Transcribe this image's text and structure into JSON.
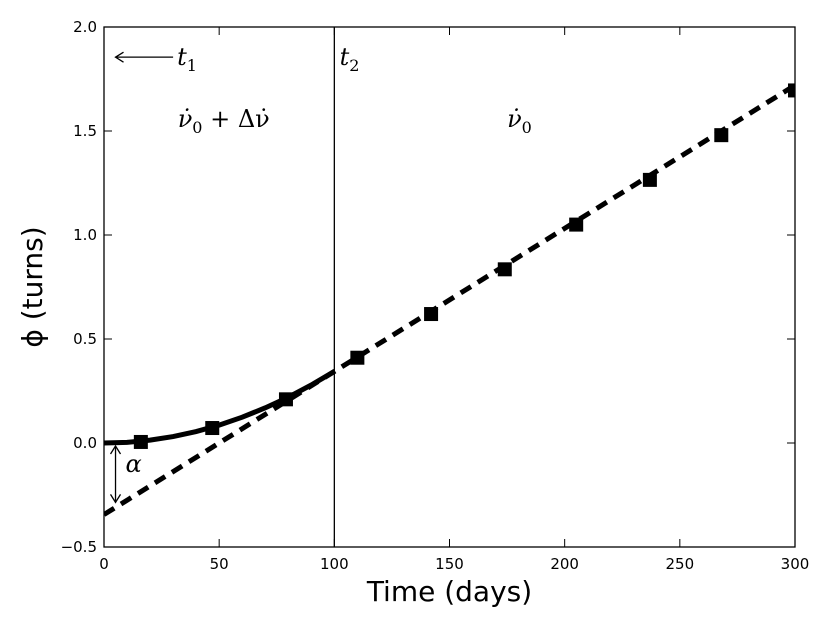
{
  "chart_data": {
    "type": "line",
    "title": "",
    "xlabel": "Time (days)",
    "ylabel": "ϕ (turns)",
    "xlim": [
      0,
      300
    ],
    "ylim": [
      -0.5,
      2.0
    ],
    "xticks": [
      0,
      50,
      100,
      150,
      200,
      250,
      300
    ],
    "yticks": [
      -0.5,
      0.0,
      0.5,
      1.0,
      1.5,
      2.0
    ],
    "xtick_labels": [
      "0",
      "50",
      "100",
      "150",
      "200",
      "250",
      "300"
    ],
    "ytick_labels": [
      "−0.5",
      "0.0",
      "0.5",
      "1.0",
      "1.5",
      "2.0"
    ],
    "grid": false,
    "series": [
      {
        "style": "solid",
        "color": "#000000",
        "x": [
          0,
          10,
          20,
          30,
          40,
          50,
          60,
          70,
          80,
          90,
          100
        ],
        "y": [
          0.0,
          0.003,
          0.014,
          0.031,
          0.055,
          0.086,
          0.124,
          0.169,
          0.22,
          0.279,
          0.344
        ]
      },
      {
        "style": "dashed",
        "color": "#000000",
        "x": [
          0,
          300
        ],
        "y": [
          -0.344,
          1.72
        ]
      },
      {
        "style": "markers",
        "marker": "square",
        "color": "#000000",
        "x": [
          16,
          47,
          79,
          110,
          142,
          174,
          205,
          237,
          268,
          300
        ],
        "y": [
          0.005,
          0.072,
          0.21,
          0.41,
          0.62,
          0.835,
          1.05,
          1.265,
          1.48,
          1.695
        ]
      }
    ],
    "vline": {
      "x": 100
    },
    "annotations": {
      "t1": {
        "base": "t",
        "sub": "1",
        "arrow_from_x": 30,
        "arrow_to_x": 5,
        "y": 1.855
      },
      "t2": {
        "base": "t",
        "sub": "2",
        "x": 101,
        "y": 1.855
      },
      "region_left": {
        "text": "ν̇",
        "sub": "0",
        "rest": " + Δν̇",
        "x": 32,
        "y": 1.52
      },
      "region_right": {
        "text": "ν̇",
        "sub": "0",
        "x": 175,
        "y": 1.52
      },
      "alpha": {
        "text": "α",
        "x": 5,
        "y_top": 0.0,
        "y_bottom": -0.3
      }
    }
  }
}
